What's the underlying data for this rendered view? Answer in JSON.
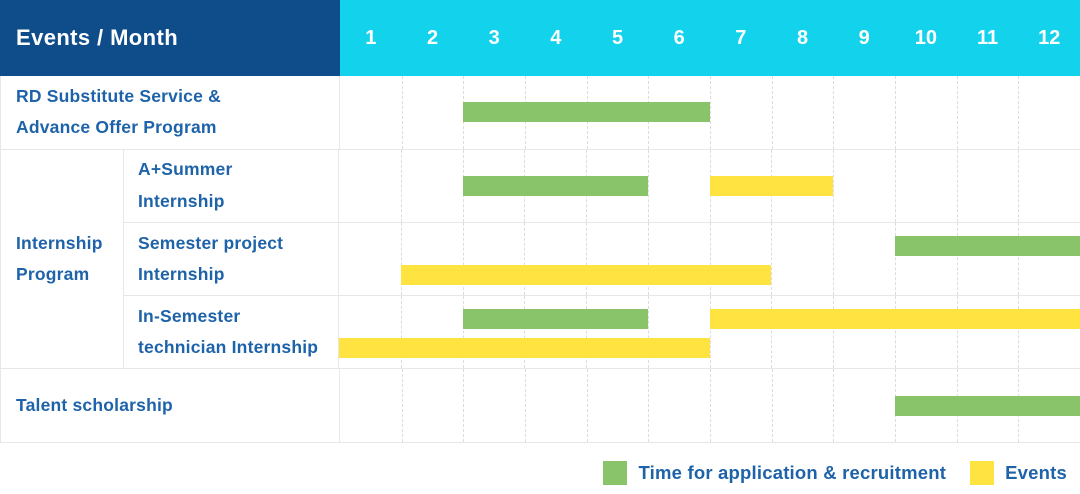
{
  "colors": {
    "navy": "#0e4c8a",
    "cyan": "#12d2ec",
    "green": "#8ac46a",
    "yellow": "#ffe341",
    "blue": "#1e63a9"
  },
  "header": {
    "title": "Events / Month",
    "months": [
      "1",
      "2",
      "3",
      "4",
      "5",
      "6",
      "7",
      "8",
      "9",
      "10",
      "11",
      "12"
    ]
  },
  "group": {
    "label": "Internship\nProgram"
  },
  "rows": [
    {
      "label": "RD Substitute Service &\nAdvance Offer Program",
      "bars": [
        {
          "color": "green",
          "start": 3,
          "end": 6,
          "line": "center"
        }
      ]
    },
    {
      "label": "A+Summer\nInternship",
      "bars": [
        {
          "color": "green",
          "start": 3,
          "end": 5,
          "line": "center"
        },
        {
          "color": "yellow",
          "start": 7,
          "end": 8,
          "line": "center"
        }
      ]
    },
    {
      "label": "Semester project\nInternship",
      "bars": [
        {
          "color": "green",
          "start": 10,
          "end": 12,
          "line": "top"
        },
        {
          "color": "yellow",
          "start": 2,
          "end": 7,
          "line": "bottom"
        }
      ]
    },
    {
      "label": "In-Semester\ntechnician Internship",
      "bars": [
        {
          "color": "green",
          "start": 3,
          "end": 5,
          "line": "top"
        },
        {
          "color": "yellow",
          "start": 7,
          "end": 12,
          "line": "top"
        },
        {
          "color": "yellow",
          "start": 1,
          "end": 6,
          "line": "bottom"
        }
      ]
    },
    {
      "label": "Talent scholarship",
      "bars": [
        {
          "color": "green",
          "start": 10,
          "end": 12,
          "line": "center"
        }
      ]
    }
  ],
  "legend": [
    {
      "color": "green",
      "label": "Time for application & recruitment"
    },
    {
      "color": "yellow",
      "label": "Events"
    }
  ],
  "chart_data": {
    "type": "table",
    "title": "Events / Month",
    "columns": [
      "1",
      "2",
      "3",
      "4",
      "5",
      "6",
      "7",
      "8",
      "9",
      "10",
      "11",
      "12"
    ],
    "xlabel": "Month",
    "legend_position": "bottom-right",
    "grid": true,
    "rows": [
      {
        "event": "RD Substitute Service & Advance Offer Program",
        "application_recruitment_months": [
          [
            3,
            6
          ]
        ],
        "events_months": []
      },
      {
        "event": "Internship Program - A+Summer Internship",
        "application_recruitment_months": [
          [
            3,
            5
          ]
        ],
        "events_months": [
          [
            7,
            8
          ]
        ]
      },
      {
        "event": "Internship Program - Semester project Internship",
        "application_recruitment_months": [
          [
            10,
            12
          ]
        ],
        "events_months": [
          [
            2,
            7
          ]
        ]
      },
      {
        "event": "Internship Program - In-Semester technician Internship",
        "application_recruitment_months": [
          [
            3,
            5
          ]
        ],
        "events_months": [
          [
            1,
            6
          ],
          [
            7,
            12
          ]
        ]
      },
      {
        "event": "Talent scholarship",
        "application_recruitment_months": [
          [
            10,
            12
          ]
        ],
        "events_months": []
      }
    ],
    "legend": [
      "Time for application & recruitment",
      "Events"
    ]
  }
}
